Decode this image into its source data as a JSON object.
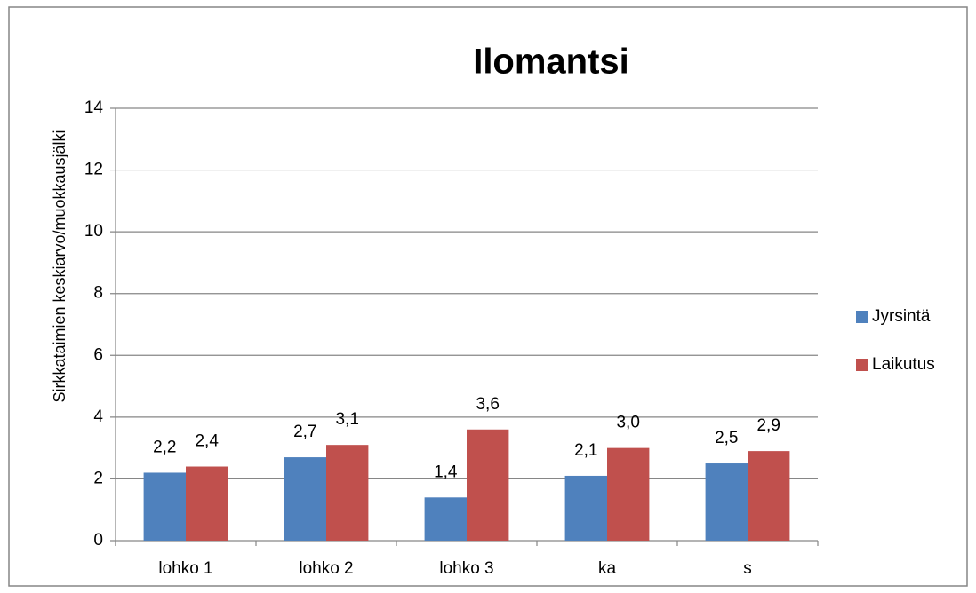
{
  "chart_data": {
    "type": "bar",
    "title": "Ilomantsi",
    "y_label": "Sirkkataimien keskiarvo/muokkausjälki",
    "categories": [
      "lohko 1",
      "lohko 2",
      "lohko 3",
      "ka",
      "s"
    ],
    "series": [
      {
        "name": "Jyrsintä",
        "color": "#4f81bd",
        "values": [
          2.2,
          2.7,
          1.4,
          2.1,
          2.5
        ],
        "value_labels": [
          "2,2",
          "2,7",
          "1,4",
          "2,1",
          "2,5"
        ]
      },
      {
        "name": "Laikutus",
        "color": "#c0504d",
        "values": [
          2.4,
          3.1,
          3.6,
          3.0,
          2.9
        ],
        "value_labels": [
          "2,4",
          "3,1",
          "3,6",
          "3,0",
          "2,9"
        ]
      }
    ],
    "ylim": [
      0,
      14
    ],
    "yticks": [
      0,
      2,
      4,
      6,
      8,
      10,
      12,
      14
    ],
    "grid": true,
    "legend": "right"
  }
}
